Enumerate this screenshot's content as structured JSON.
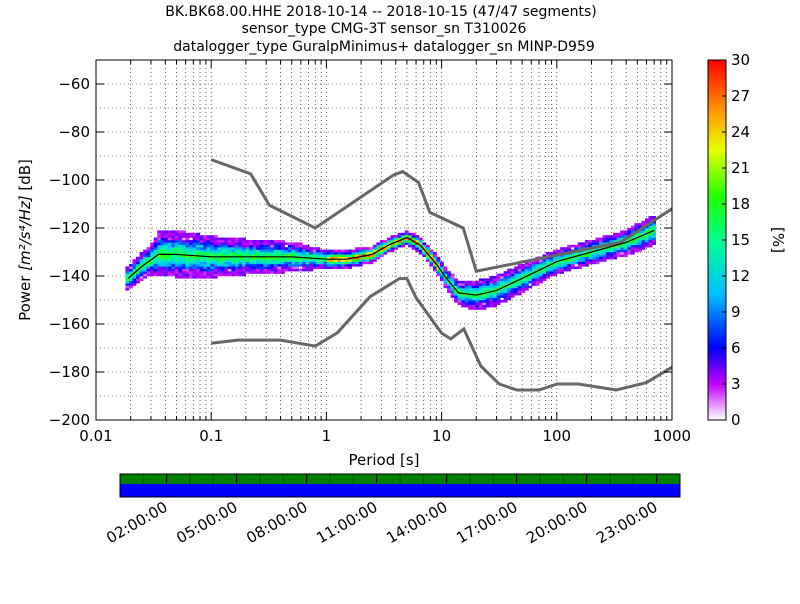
{
  "chart_data": {
    "type": "heatmap",
    "title_lines": [
      "BK.BK68.00.HHE   2018-10-14 -- 2018-10-15  (47/47 segments)",
      "sensor_type CMG-3T sensor_sn T310026",
      "datalogger_type GuralpMinimus+ datalogger_sn MINP-D959"
    ],
    "xlabel": "Period [s]",
    "ylabel_prefix": "Power ",
    "ylabel_math": "[m²/s⁴/Hz]",
    "ylabel_suffix": " [dB]",
    "x_scale": "log",
    "xlim": [
      0.01,
      1000
    ],
    "ylim": [
      -200,
      -50
    ],
    "x_tick_labels": [
      "0.01",
      "0.1",
      "1",
      "10",
      "100",
      "1000"
    ],
    "x_tick_values": [
      0.01,
      0.1,
      1,
      10,
      100,
      1000
    ],
    "y_tick_values": [
      -60,
      -80,
      -100,
      -120,
      -140,
      -160,
      -180,
      -200
    ],
    "y_tick_labels": [
      "−60",
      "−80",
      "−100",
      "−120",
      "−140",
      "−160",
      "−180",
      "−200"
    ],
    "grid": "dotted",
    "colorbar": {
      "label": "[%]",
      "range": [
        0,
        30
      ],
      "ticks": [
        "0",
        "3",
        "6",
        "9",
        "12",
        "15",
        "18",
        "21",
        "24",
        "27",
        "30"
      ],
      "colormap": "pqlx"
    },
    "nhnm": [
      {
        "x": 0.1,
        "y": -91.5
      },
      {
        "x": 0.22,
        "y": -97.4
      },
      {
        "x": 0.32,
        "y": -110.5
      },
      {
        "x": 0.8,
        "y": -120
      },
      {
        "x": 3.8,
        "y": -98
      },
      {
        "x": 4.6,
        "y": -96.5
      },
      {
        "x": 6.3,
        "y": -101
      },
      {
        "x": 7.9,
        "y": -113.5
      },
      {
        "x": 15.4,
        "y": -120
      },
      {
        "x": 20,
        "y": -138
      },
      {
        "x": 354.8,
        "y": -126
      },
      {
        "x": 1000,
        "y": -112
      }
    ],
    "nlnm": [
      {
        "x": 0.1,
        "y": -168
      },
      {
        "x": 0.17,
        "y": -166.7
      },
      {
        "x": 0.4,
        "y": -166.7
      },
      {
        "x": 0.8,
        "y": -169.2
      },
      {
        "x": 1.24,
        "y": -163.7
      },
      {
        "x": 2.4,
        "y": -148.6
      },
      {
        "x": 4.3,
        "y": -141.1
      },
      {
        "x": 5.0,
        "y": -141.1
      },
      {
        "x": 6.0,
        "y": -149
      },
      {
        "x": 10.0,
        "y": -163.8
      },
      {
        "x": 12.0,
        "y": -166.2
      },
      {
        "x": 15.6,
        "y": -162.1
      },
      {
        "x": 21.9,
        "y": -177.5
      },
      {
        "x": 31.6,
        "y": -185
      },
      {
        "x": 45,
        "y": -187.5
      },
      {
        "x": 70,
        "y": -187.5
      },
      {
        "x": 101,
        "y": -185
      },
      {
        "x": 154,
        "y": -185
      },
      {
        "x": 328,
        "y": -187.5
      },
      {
        "x": 600,
        "y": -184.4
      },
      {
        "x": 1000,
        "y": -178
      }
    ],
    "mean_psd": [
      {
        "x": 0.019,
        "y": -141
      },
      {
        "x": 0.025,
        "y": -136
      },
      {
        "x": 0.035,
        "y": -131
      },
      {
        "x": 0.05,
        "y": -131
      },
      {
        "x": 0.1,
        "y": -132
      },
      {
        "x": 0.2,
        "y": -132
      },
      {
        "x": 0.5,
        "y": -132
      },
      {
        "x": 1.0,
        "y": -133
      },
      {
        "x": 1.5,
        "y": -133
      },
      {
        "x": 2.5,
        "y": -131
      },
      {
        "x": 3.5,
        "y": -127
      },
      {
        "x": 5.0,
        "y": -124
      },
      {
        "x": 6.5,
        "y": -127
      },
      {
        "x": 9.0,
        "y": -135
      },
      {
        "x": 11.0,
        "y": -141
      },
      {
        "x": 14.0,
        "y": -147
      },
      {
        "x": 20.0,
        "y": -148
      },
      {
        "x": 30.0,
        "y": -146
      },
      {
        "x": 50.0,
        "y": -141
      },
      {
        "x": 100.0,
        "y": -134
      },
      {
        "x": 200.0,
        "y": -130
      },
      {
        "x": 400.0,
        "y": -126
      },
      {
        "x": 700.0,
        "y": -121
      }
    ],
    "band_half_width": [
      {
        "x": 0.019,
        "w": 4
      },
      {
        "x": 0.03,
        "w": 5
      },
      {
        "x": 0.035,
        "w": 8
      },
      {
        "x": 0.06,
        "w": 8
      },
      {
        "x": 0.2,
        "w": 6
      },
      {
        "x": 0.5,
        "w": 5
      },
      {
        "x": 1.0,
        "w": 3
      },
      {
        "x": 3.0,
        "w": 2.5
      },
      {
        "x": 5.0,
        "w": 2
      },
      {
        "x": 10.0,
        "w": 3
      },
      {
        "x": 20.0,
        "w": 5
      },
      {
        "x": 40.0,
        "w": 5
      },
      {
        "x": 100.0,
        "w": 4
      },
      {
        "x": 300.0,
        "w": 4
      },
      {
        "x": 700.0,
        "w": 5
      }
    ],
    "coverage": {
      "time_tick_labels": [
        "02:00:00",
        "05:00:00",
        "08:00:00",
        "11:00:00",
        "14:00:00",
        "17:00:00",
        "20:00:00",
        "23:00:00"
      ],
      "data_color": "#0000ff",
      "psd_color": "#008000",
      "segments": 47
    }
  }
}
